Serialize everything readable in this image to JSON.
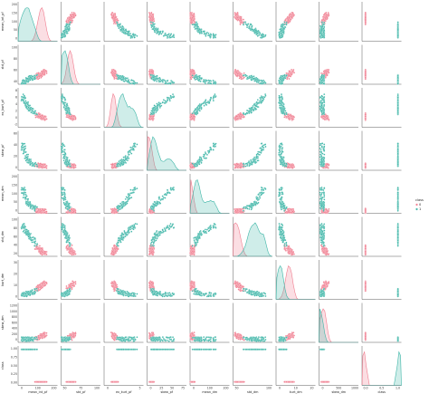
{
  "chart_data": {
    "type": "scatter",
    "kind": "pairplot",
    "variables": [
      "mean_int_pf",
      "std_pf",
      "ex_kurt_pf",
      "skew_pf",
      "mean_dm",
      "std_dm",
      "kurt_dm",
      "skew_dm",
      "class"
    ],
    "axis_labels": [
      "mean_int_pf",
      "std_pf",
      "ex_kurt_pf",
      "skew_pf",
      "mean_dm",
      "std_dm",
      "kurt_dm",
      "skew_dm",
      "class"
    ],
    "x_tick_labels": [
      [
        "0",
        "100",
        "200"
      ],
      [
        "50",
        "75",
        "100"
      ],
      [
        "0",
        "5"
      ],
      [
        "0",
        "25",
        "50",
        "75"
      ],
      [
        "0",
        "100",
        "200"
      ],
      [
        "50",
        "100"
      ],
      [
        "0",
        "10",
        "20"
      ],
      [
        "0",
        "500",
        "1000"
      ],
      [
        "0.0",
        "0.5",
        "1.0"
      ]
    ],
    "y_tick_labels": [
      [
        "200",
        "150",
        "100",
        "50",
        "0"
      ],
      [
        "100",
        "80",
        "60",
        "40"
      ],
      [
        "8",
        "6",
        "4",
        "2",
        "0",
        "-2"
      ],
      [
        "60",
        "40",
        "20",
        "0"
      ],
      [
        "200",
        "150",
        "100",
        "50",
        "0"
      ],
      [
        "100",
        "80",
        "60",
        "40",
        "20"
      ],
      [
        "30",
        "20",
        "10",
        "0"
      ],
      [
        "1200",
        "1000",
        "800",
        "600",
        "400",
        "200",
        "0"
      ],
      [
        "1.00",
        "0.75",
        "0.50",
        "0.25",
        "0.00"
      ]
    ],
    "hue": "class",
    "legend": {
      "title": "class",
      "entries": [
        "0",
        "1"
      ],
      "placement": "right"
    },
    "colors": {
      "0": "#f07d8f",
      "1": "#3fb6a8"
    },
    "series": [
      {
        "name": "0",
        "values": [
          [
            117,
            48,
            0.5,
            0.8,
            3.2,
            20,
            8.5,
            105,
            0
          ],
          [
            125,
            50,
            0.3,
            0.2,
            2.5,
            18,
            9.2,
            120,
            0
          ],
          [
            108,
            44,
            0.6,
            1.2,
            4.5,
            25,
            7.1,
            80,
            0
          ],
          [
            132,
            52,
            0.1,
            -0.2,
            1.8,
            15,
            10.5,
            150,
            0
          ],
          [
            115,
            47,
            0.4,
            0.6,
            3.8,
            22,
            8.0,
            95,
            0
          ],
          [
            140,
            55,
            0.0,
            -0.5,
            2.1,
            16,
            11.0,
            180,
            0
          ],
          [
            100,
            42,
            0.8,
            1.6,
            6.0,
            28,
            6.5,
            60,
            0
          ],
          [
            122,
            49,
            0.3,
            0.4,
            2.9,
            19,
            9.0,
            110,
            0
          ],
          [
            95,
            46,
            0.9,
            2.0,
            8.0,
            30,
            5.8,
            45,
            0
          ],
          [
            128,
            51,
            0.2,
            0.1,
            2.2,
            17,
            10.0,
            140,
            0
          ]
        ]
      },
      {
        "name": "1",
        "values": [
          [
            45,
            36,
            3.5,
            15.0,
            60,
            70,
            1.5,
            3,
            1
          ],
          [
            30,
            32,
            4.8,
            28.0,
            95,
            80,
            0.8,
            1,
            1
          ],
          [
            60,
            40,
            2.5,
            8.0,
            40,
            60,
            2.2,
            6,
            1
          ],
          [
            20,
            30,
            5.5,
            38.0,
            120,
            85,
            0.5,
            0.5,
            1
          ],
          [
            75,
            42,
            1.8,
            4.5,
            25,
            50,
            3.0,
            10,
            1
          ],
          [
            38,
            34,
            4.0,
            20.0,
            80,
            75,
            1.2,
            2,
            1
          ],
          [
            52,
            38,
            3.0,
            11.0,
            50,
            65,
            1.8,
            4,
            1
          ],
          [
            15,
            28,
            6.2,
            45.0,
            140,
            90,
            0.3,
            0.2,
            1
          ],
          [
            85,
            44,
            1.2,
            2.5,
            15,
            40,
            4.5,
            20,
            1
          ],
          [
            66,
            41,
            2.2,
            6.5,
            30,
            55,
            2.6,
            8,
            1
          ]
        ]
      }
    ]
  }
}
